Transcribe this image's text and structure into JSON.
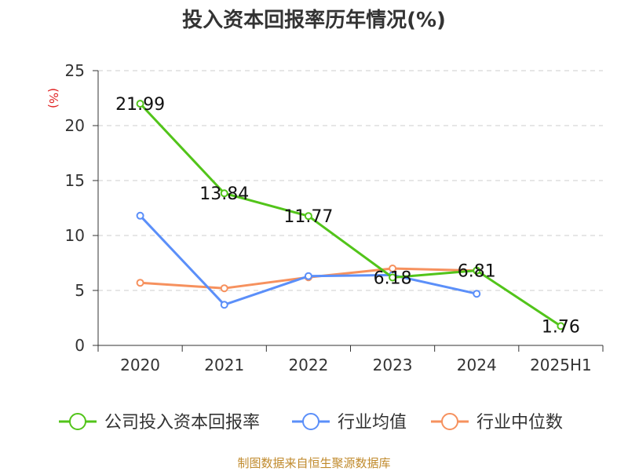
{
  "colors": {
    "series": [
      "#52c41a",
      "#5b8ff9",
      "#f6915e"
    ],
    "unit": "#e02020",
    "source": "#c08a2c",
    "grid": "#cccccc",
    "axis": "#333333"
  },
  "chart_data": {
    "type": "line",
    "title": "投入资本回报率历年情况(%)",
    "ylabel": "(%)",
    "xlabel": "",
    "categories": [
      "2020",
      "2021",
      "2022",
      "2023",
      "2024",
      "2025H1"
    ],
    "ylim": [
      0,
      25
    ],
    "yticks": [
      0,
      5,
      10,
      15,
      20,
      25
    ],
    "grid": "horizontal dashed",
    "legend_position": "bottom",
    "series": [
      {
        "name": "公司投入资本回报率",
        "values": [
          21.99,
          13.84,
          11.77,
          6.18,
          6.81,
          1.76
        ],
        "show_labels": true
      },
      {
        "name": "行业均值",
        "values": [
          11.8,
          3.7,
          6.3,
          6.4,
          4.7,
          null
        ],
        "show_labels": false
      },
      {
        "name": "行业中位数",
        "values": [
          5.7,
          5.2,
          6.2,
          7.0,
          6.8,
          null
        ],
        "show_labels": false
      }
    ],
    "data_labels": [
      "21.99",
      "13.84",
      "11.77",
      "6.18",
      "6.81",
      "1.76"
    ]
  },
  "source": "制图数据来自恒生聚源数据库"
}
